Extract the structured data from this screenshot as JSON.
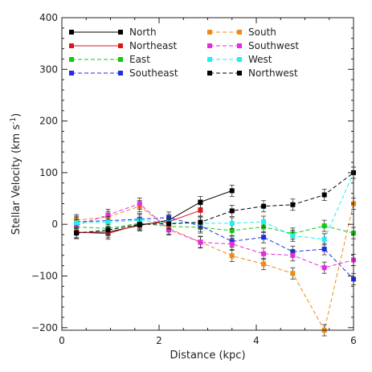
{
  "chart_data": {
    "type": "line",
    "title": "",
    "xlabel": "Distance (kpc)",
    "ylabel_main": "Stellar Velocity (km s",
    "ylabel_sup": "-1",
    "ylabel_close": ")",
    "xlim": [
      0,
      6
    ],
    "ylim": [
      -205,
      400
    ],
    "xticks": [
      0,
      2,
      4,
      6
    ],
    "yticks": [
      -200,
      -100,
      0,
      100,
      200,
      300,
      400
    ],
    "xtick_labels": [
      "0",
      "2",
      "4",
      "6"
    ],
    "ytick_labels": [
      "−200",
      "−100",
      "0",
      "100",
      "200",
      "300",
      "400"
    ],
    "grid": false,
    "legend_position": "top",
    "series": [
      {
        "name": "North",
        "color": "#000000",
        "dashed": false,
        "points": [
          [
            0.3,
            -16
          ],
          [
            0.95,
            -15
          ],
          [
            1.6,
            -2
          ],
          [
            2.2,
            8
          ],
          [
            2.85,
            43
          ],
          [
            3.5,
            65
          ]
        ]
      },
      {
        "name": "Northeast",
        "color": "#e0141b",
        "dashed": false,
        "points": [
          [
            0.3,
            -15
          ],
          [
            0.95,
            -18
          ],
          [
            1.6,
            0
          ],
          [
            2.2,
            5
          ],
          [
            2.85,
            27
          ]
        ]
      },
      {
        "name": "East",
        "color": "#12c912",
        "dashed": true,
        "points": [
          [
            0.3,
            -5
          ],
          [
            0.95,
            -8
          ],
          [
            1.6,
            2
          ],
          [
            2.2,
            -4
          ],
          [
            2.85,
            -6
          ],
          [
            3.5,
            -12
          ],
          [
            4.15,
            -5
          ],
          [
            4.75,
            -18
          ],
          [
            5.4,
            -3
          ],
          [
            6.0,
            -17
          ]
        ]
      },
      {
        "name": "Southeast",
        "color": "#1f2ee6",
        "dashed": true,
        "points": [
          [
            0.3,
            5
          ],
          [
            0.95,
            7
          ],
          [
            1.6,
            10
          ],
          [
            2.2,
            13
          ],
          [
            2.85,
            -3
          ],
          [
            3.5,
            -33
          ],
          [
            4.15,
            -25
          ],
          [
            4.75,
            -53
          ],
          [
            5.4,
            -48
          ],
          [
            6.0,
            -106
          ]
        ]
      },
      {
        "name": "South",
        "color": "#f08a10",
        "dashed": true,
        "points": [
          [
            0.3,
            8
          ],
          [
            0.95,
            14
          ],
          [
            1.6,
            35
          ],
          [
            2.2,
            -8
          ],
          [
            2.85,
            -34
          ],
          [
            3.5,
            -61
          ],
          [
            4.15,
            -77
          ],
          [
            4.75,
            -95
          ],
          [
            5.4,
            -205
          ],
          [
            6.0,
            40
          ]
        ]
      },
      {
        "name": "Southwest",
        "color": "#e62be0",
        "dashed": true,
        "points": [
          [
            0.3,
            -2
          ],
          [
            0.95,
            18
          ],
          [
            1.6,
            40
          ],
          [
            2.2,
            -10
          ],
          [
            2.85,
            -35
          ],
          [
            3.5,
            -38
          ],
          [
            4.15,
            -57
          ],
          [
            4.75,
            -60
          ],
          [
            5.4,
            -84
          ],
          [
            6.0,
            -69
          ]
        ]
      },
      {
        "name": "West",
        "color": "#19f2f2",
        "dashed": true,
        "points": [
          [
            0.3,
            3
          ],
          [
            0.95,
            4
          ],
          [
            1.6,
            8
          ],
          [
            2.2,
            3
          ],
          [
            2.85,
            2
          ],
          [
            3.5,
            2
          ],
          [
            4.15,
            5
          ],
          [
            4.75,
            -22
          ],
          [
            5.4,
            -29
          ],
          [
            6.0,
            100
          ]
        ]
      },
      {
        "name": "Northwest",
        "color": "#000000",
        "dashed": true,
        "points": [
          [
            0.3,
            -17
          ],
          [
            0.95,
            -11
          ],
          [
            1.6,
            0
          ],
          [
            2.2,
            1
          ],
          [
            2.85,
            4
          ],
          [
            3.5,
            26
          ],
          [
            4.15,
            35
          ],
          [
            4.75,
            38
          ],
          [
            5.4,
            57
          ],
          [
            6.0,
            100
          ]
        ]
      }
    ]
  }
}
